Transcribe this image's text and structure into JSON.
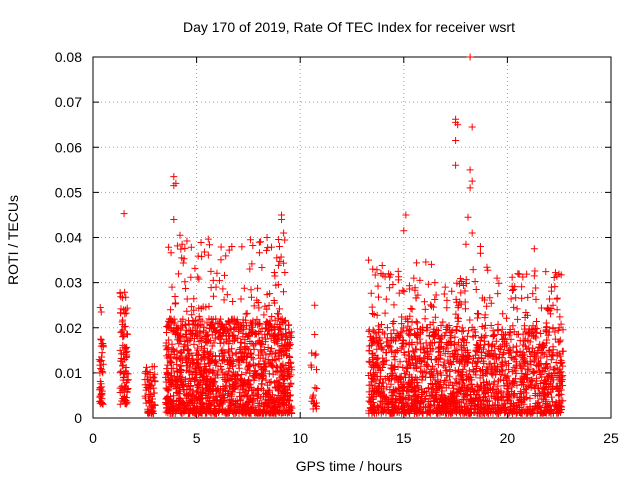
{
  "chart_data": {
    "type": "scatter",
    "title": "Day 170 of 2019, Rate Of TEC Index for receiver wsrt",
    "xlabel": "GPS time / hours",
    "ylabel": "ROTI / TECUs",
    "xlim": [
      0,
      25
    ],
    "ylim": [
      0,
      0.08
    ],
    "x_ticks": [
      0,
      5,
      10,
      15,
      20,
      25
    ],
    "y_ticks": [
      0,
      0.01,
      0.02,
      0.03,
      0.04,
      0.05,
      0.06,
      0.07,
      0.08
    ],
    "x_tick_labels": [
      "0",
      "5",
      "10",
      "15",
      "20",
      "25"
    ],
    "y_tick_labels": [
      "0",
      "0.01",
      "0.02",
      "0.03",
      "0.04",
      "0.05",
      "0.06",
      "0.07",
      "0.08"
    ],
    "grid": true,
    "marker": "+",
    "color": "#ff0000",
    "clusters": [
      {
        "x_range": [
          0.3,
          0.5
        ],
        "y_range": [
          0.003,
          0.018
        ],
        "count": 40
      },
      {
        "x_range": [
          1.3,
          1.7
        ],
        "y_range": [
          0.003,
          0.028
        ],
        "count": 90
      },
      {
        "x_range": [
          2.5,
          3.0
        ],
        "y_range": [
          0.001,
          0.012
        ],
        "count": 70
      },
      {
        "x_range": [
          3.5,
          9.6
        ],
        "y_range": [
          0.001,
          0.022
        ],
        "count": 1400
      },
      {
        "x_range": [
          3.6,
          9.4
        ],
        "y_range": [
          0.018,
          0.04
        ],
        "count": 160
      },
      {
        "x_range": [
          10.5,
          10.8
        ],
        "y_range": [
          0.002,
          0.015
        ],
        "count": 20
      },
      {
        "x_range": [
          13.3,
          22.7
        ],
        "y_range": [
          0.001,
          0.02
        ],
        "count": 1700
      },
      {
        "x_range": [
          13.4,
          22.6
        ],
        "y_range": [
          0.02,
          0.035
        ],
        "count": 180
      }
    ],
    "points": [
      [
        0.35,
        0.0245
      ],
      [
        0.4,
        0.0235
      ],
      [
        1.5,
        0.0453
      ],
      [
        3.9,
        0.0535
      ],
      [
        3.9,
        0.0515
      ],
      [
        4.0,
        0.052
      ],
      [
        3.9,
        0.044
      ],
      [
        4.2,
        0.0405
      ],
      [
        4.3,
        0.0385
      ],
      [
        6.7,
        0.038
      ],
      [
        7.6,
        0.0395
      ],
      [
        8.4,
        0.04
      ],
      [
        9.1,
        0.045
      ],
      [
        9.1,
        0.044
      ],
      [
        9.2,
        0.041
      ],
      [
        9.0,
        0.038
      ],
      [
        10.7,
        0.025
      ],
      [
        10.7,
        0.0185
      ],
      [
        13.3,
        0.035
      ],
      [
        13.5,
        0.033
      ],
      [
        15.0,
        0.0415
      ],
      [
        15.1,
        0.045
      ],
      [
        17.5,
        0.0662
      ],
      [
        17.6,
        0.065
      ],
      [
        17.5,
        0.0655
      ],
      [
        18.2,
        0.08
      ],
      [
        18.3,
        0.0645
      ],
      [
        17.5,
        0.0615
      ],
      [
        18.2,
        0.055
      ],
      [
        18.3,
        0.0525
      ],
      [
        18.2,
        0.051
      ],
      [
        18.1,
        0.0445
      ],
      [
        17.5,
        0.056
      ],
      [
        18.0,
        0.0385
      ],
      [
        18.7,
        0.038
      ],
      [
        18.3,
        0.041
      ],
      [
        18.7,
        0.0365
      ],
      [
        21.3,
        0.0375
      ],
      [
        21.3,
        0.0315
      ],
      [
        20.3,
        0.0285
      ],
      [
        16.5,
        0.03
      ],
      [
        17.0,
        0.029
      ],
      [
        19.5,
        0.031
      ],
      [
        22.2,
        0.025
      ],
      [
        22.4,
        0.024
      ]
    ]
  }
}
